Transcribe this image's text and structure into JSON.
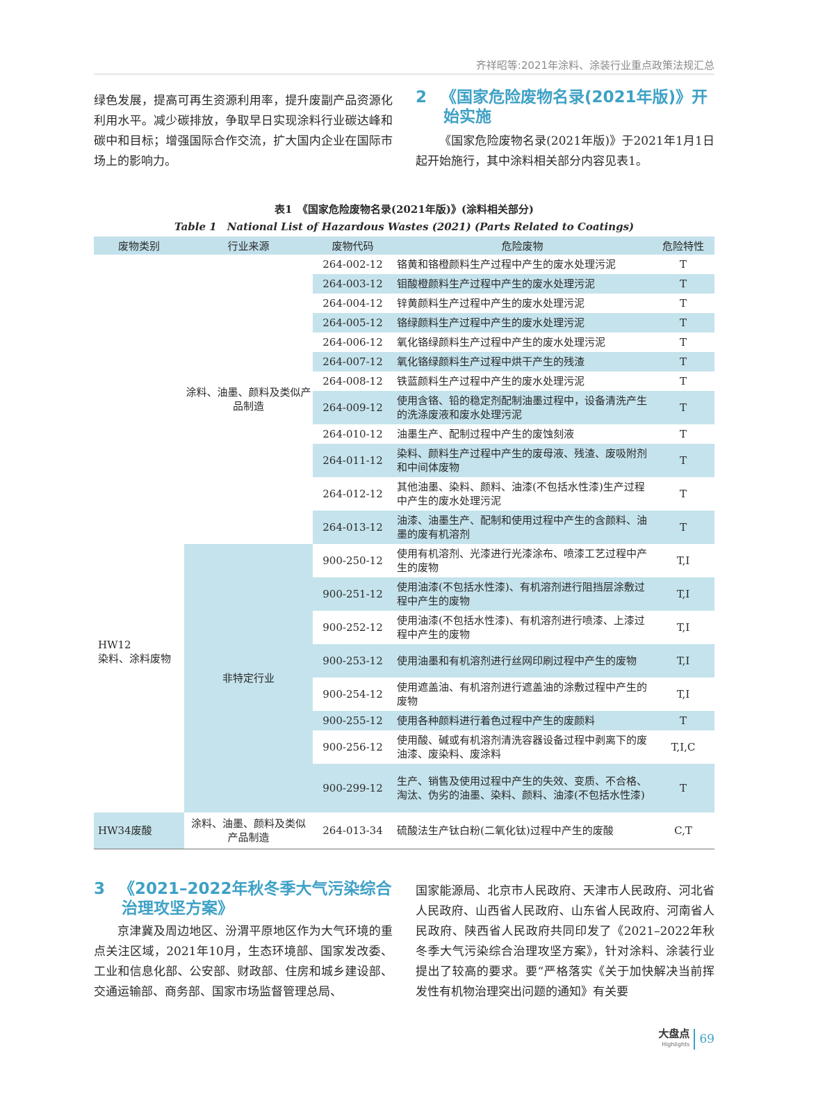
{
  "header": {
    "running_title": "齐祥昭等:2021年涂料、涂装行业重点政策法规汇总"
  },
  "left_top": {
    "text": "绿色发展，提高可再生资源利用率，提升废副产品资源化利用水平。减少碳排放，争取早日实现涂料行业碳达峰和碳中和目标；增强国际合作交流，扩大国内企业在国际市场上的影响力。"
  },
  "section2": {
    "number": "2",
    "title_line1": "《国家危险废物名录(2021年版)》开",
    "title_line2": "始实施",
    "body": "《国家危险废物名录(2021年版)》于2021年1月1日起开始施行，其中涂料相关部分内容见表1。"
  },
  "table": {
    "caption_cn": "表1　《国家危险废物名录(2021年版)》(涂料相关部分)",
    "caption_en": "Table 1　National List of Hazardous Wastes (2021) (Parts Related to Coatings)",
    "headers": [
      "废物类别",
      "行业来源",
      "废物代码",
      "危险废物",
      "危险特性"
    ],
    "category_hw12": "HW12\n染料、涂料废物",
    "category_hw34": "HW34废酸",
    "industry_coatings": "涂料、油墨、颜料及类似产品制造",
    "industry_nonspecific": "非特定行业",
    "rows": [
      {
        "code": "264-002-12",
        "waste": "铬黄和铬橙颜料生产过程中产生的废水处理污泥",
        "char": "T"
      },
      {
        "code": "264-003-12",
        "waste": "钼酸橙颜料生产过程中产生的废水处理污泥",
        "char": "T"
      },
      {
        "code": "264-004-12",
        "waste": "锌黄颜料生产过程中产生的废水处理污泥",
        "char": "T"
      },
      {
        "code": "264-005-12",
        "waste": "铬绿颜料生产过程中产生的废水处理污泥",
        "char": "T"
      },
      {
        "code": "264-006-12",
        "waste": "氧化铬绿颜料生产过程中产生的废水处理污泥",
        "char": "T"
      },
      {
        "code": "264-007-12",
        "waste": "氧化铬绿颜料生产过程中烘干产生的残渣",
        "char": "T"
      },
      {
        "code": "264-008-12",
        "waste": "铁蓝颜料生产过程中产生的废水处理污泥",
        "char": "T"
      },
      {
        "code": "264-009-12",
        "waste": "使用含铬、铅的稳定剂配制油墨过程中，设备清洗产生的洗涤废液和废水处理污泥",
        "char": "T"
      },
      {
        "code": "264-010-12",
        "waste": "油墨生产、配制过程中产生的废蚀刻液",
        "char": "T"
      },
      {
        "code": "264-011-12",
        "waste": "染料、颜料生产过程中产生的废母液、残渣、废吸附剂和中间体废物",
        "char": "T"
      },
      {
        "code": "264-012-12",
        "waste": "其他油墨、染料、颜料、油漆(不包括水性漆)生产过程中产生的废水处理污泥",
        "char": "T"
      },
      {
        "code": "264-013-12",
        "waste": "油漆、油墨生产、配制和使用过程中产生的含颜料、油墨的废有机溶剂",
        "char": "T"
      },
      {
        "code": "900-250-12",
        "waste": "使用有机溶剂、光漆进行光漆涂布、喷漆工艺过程中产生的废物",
        "char": "T,I"
      },
      {
        "code": "900-251-12",
        "waste": "使用油漆(不包括水性漆)、有机溶剂进行阻挡层涂敷过程中产生的废物",
        "char": "T,I"
      },
      {
        "code": "900-252-12",
        "waste": "使用油漆(不包括水性漆)、有机溶剂进行喷漆、上漆过程中产生的废物",
        "char": "T,I"
      },
      {
        "code": "900-253-12",
        "waste": "使用油墨和有机溶剂进行丝网印刷过程中产生的废物",
        "char": "T,I"
      },
      {
        "code": "900-254-12",
        "waste": "使用遮盖油、有机溶剂进行遮盖油的涂敷过程中产生的废物",
        "char": "T,I"
      },
      {
        "code": "900-255-12",
        "waste": "使用各种颜料进行着色过程中产生的废颜料",
        "char": "T"
      },
      {
        "code": "900-256-12",
        "waste": "使用酸、碱或有机溶剂清洗容器设备过程中剥离下的废油漆、废染料、废涂料",
        "char": "T,I,C"
      },
      {
        "code": "900-299-12",
        "waste": "生产、销售及使用过程中产生的失效、变质、不合格、淘汰、伪劣的油墨、染料、颜料、油漆(不包括水性漆)",
        "char": "T"
      },
      {
        "code": "264-013-34",
        "waste": "硫酸法生产钛白粉(二氧化钛)过程中产生的废酸",
        "char": "C,T"
      }
    ]
  },
  "section3": {
    "number": "3",
    "title_line1": "《2021–2022年秋冬季大气污染综合",
    "title_line2": "治理攻坚方案》",
    "body_left": "京津冀及周边地区、汾渭平原地区作为大气环境的重点关注区域，2021年10月，生态环境部、国家发改委、工业和信息化部、公安部、财政部、住房和城乡建设部、交通运输部、商务部、国家市场监督管理总局、",
    "body_right": "国家能源局、北京市人民政府、天津市人民政府、河北省人民政府、山西省人民政府、山东省人民政府、河南省人民政府、陕西省人民政府共同印发了《2021–2022年秋冬季大气污染综合治理攻坚方案》，针对涂料、涂装行业提出了较高的要求。要“严格落实《关于加快解决当前挥发性有机物治理突出问题的通知》有关要"
  },
  "footer": {
    "brand": "大盘点",
    "brand_en": "Highlights",
    "page": "69"
  },
  "colors": {
    "accent": "#3ea1c5",
    "table_fill": "#c5e3ec"
  }
}
